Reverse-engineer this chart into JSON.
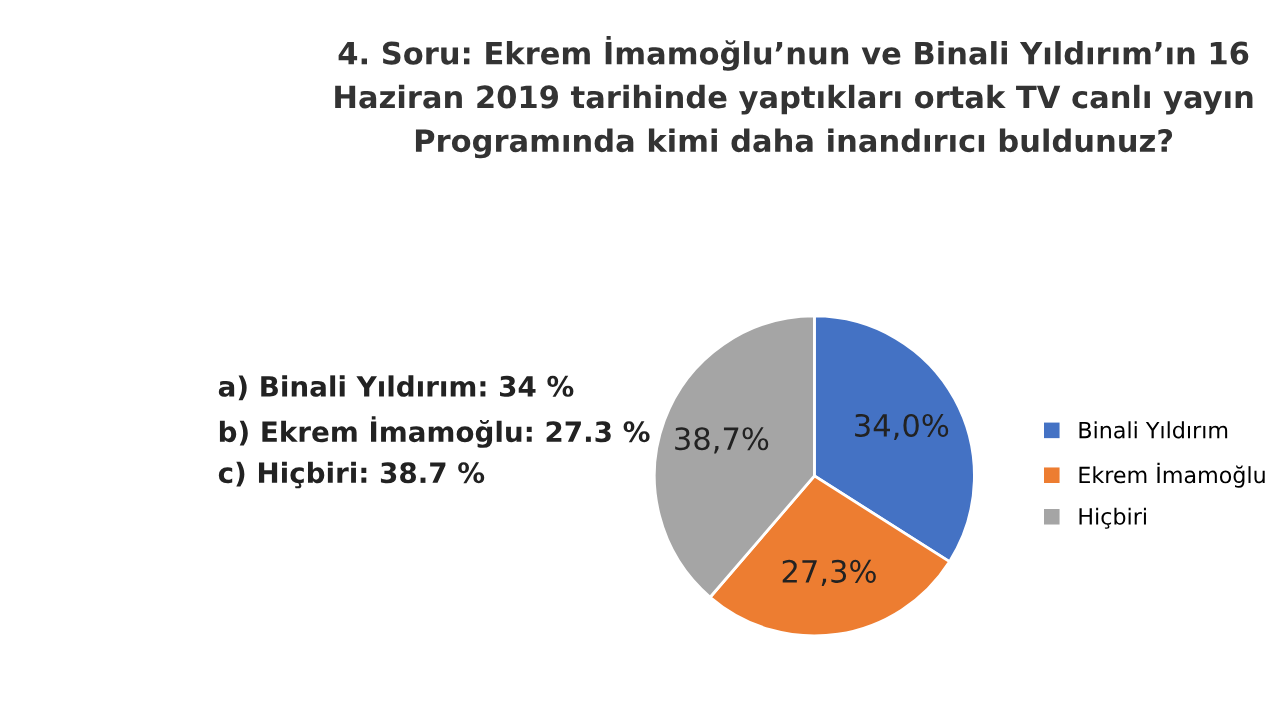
{
  "chart_data": {
    "type": "pie",
    "title": "4. Soru: Ekrem İmamoğlu’nun ve Binali Yıldırım’ın 16\nHaziran 2019 tarihinde yaptıkları ortak TV canlı yayın\nProgramında kimi daha inandırıcı buldunuz?",
    "categories": [
      "Binali Yıldırım",
      "Ekrem İmamoğlu",
      "Hiçbiri"
    ],
    "values": [
      34.0,
      27.3,
      38.7
    ],
    "colors": [
      "#4472c4",
      "#ed7d31",
      "#a5a5a5"
    ],
    "value_labels": [
      "34,0%",
      "27,3%",
      "38,7%"
    ],
    "annotations": [
      "a) Binali Yıldırım: 34 %",
      "b) Ekrem İmamoğlu: 27.3 %",
      "c) Hiçbiri: 38.7 %"
    ],
    "legend": "right"
  }
}
